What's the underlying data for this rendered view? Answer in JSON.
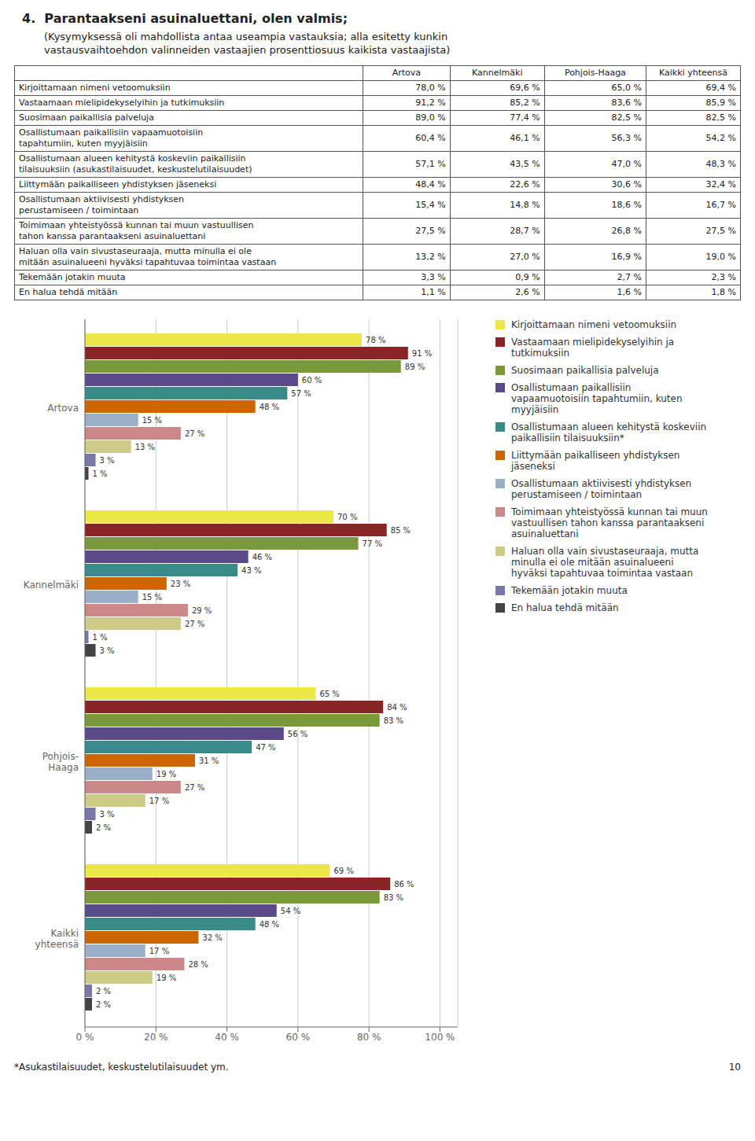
{
  "chart_data": {
    "type": "bar",
    "orientation": "horizontal",
    "title": "4.  Parantaakseni asuinaluettani, olen valmis;",
    "subtitle": "(Kysymyksessä oli mahdollista antaa useampia vastauksia; alla esitetty kunkin\nvastausvaihtoehdon valinneiden vastaajien prosenttiosuus kaikista vastaajista)",
    "table": {
      "columns": [
        "Artova",
        "Kannelmäki",
        "Pohjois-Haaga",
        "Kaikki yhteensä"
      ],
      "rows": [
        [
          "Kirjoittamaan nimeni vetoomuksiin",
          "78,0 %",
          "69,6 %",
          "65,0 %",
          "69,4 %"
        ],
        [
          "Vastaamaan mielipidekyselyihin ja tutkimuksiin",
          "91,2 %",
          "85,2 %",
          "83,6 %",
          "85,9 %"
        ],
        [
          "Suosimaan paikallisia palveluja",
          "89,0 %",
          "77,4 %",
          "82,5 %",
          "82,5 %"
        ],
        [
          "Osallistumaan paikallisiin vapaamuotoisiin\ntapahtumiin, kuten myyjäisiin",
          "60,4 %",
          "46,1 %",
          "56,3 %",
          "54,2 %"
        ],
        [
          "Osallistumaan alueen kehitystä koskeviin paikallisiin\ntilaisuuksiin (asukastilaisuudet, keskustelutilaisuudet)",
          "57,1 %",
          "43,5 %",
          "47,0 %",
          "48,3 %"
        ],
        [
          "Liittymään paikalliseen yhdistyksen jäseneksi",
          "48,4 %",
          "22,6 %",
          "30,6 %",
          "32,4 %"
        ],
        [
          "Osallistumaan aktiivisesti yhdistyksen\nperustamiseen / toimintaan",
          "15,4 %",
          "14,8 %",
          "18,6 %",
          "16,7 %"
        ],
        [
          "Toimimaan yhteistyössä kunnan tai muun vastuullisen\ntahon kanssa parantaakseni asuinaluettani",
          "27,5 %",
          "28,7 %",
          "26,8 %",
          "27,5 %"
        ],
        [
          "Haluan olla vain sivustaseuraaja, mutta minulla ei ole\nmitään asuinalueeni hyväksi tapahtuvaa toimintaa vastaan",
          "13,2 %",
          "27,0 %",
          "16,9 %",
          "19,0 %"
        ],
        [
          "Tekemään jotakin muuta",
          "3,3 %",
          "0,9 %",
          "2,7 %",
          "2,3 %"
        ],
        [
          "En halua tehdä mitään",
          "1,1 %",
          "2,6 %",
          "1,6 %",
          "1,8 %"
        ]
      ]
    },
    "categories": [
      "Artova",
      "Kannelmäki",
      "Pohjois-\nHaaga",
      "Kaikki\nyhteensä"
    ],
    "series": [
      {
        "name": "Kirjoittamaan nimeni vetoomuksiin",
        "color": "#EDE84A",
        "values": [
          78,
          70,
          65,
          69
        ],
        "value_labels": [
          "78 %",
          "70 %",
          "65 %",
          "69 %"
        ]
      },
      {
        "name": "Vastaamaan mielipidekyselyihin ja\ntutkimuksiin",
        "color": "#8B2525",
        "values": [
          91,
          85,
          84,
          86
        ],
        "value_labels": [
          "91 %",
          "85 %",
          "84 %",
          "86 %"
        ]
      },
      {
        "name": "Suosimaan paikallisia palveluja",
        "color": "#7A9A3A",
        "values": [
          89,
          77,
          83,
          83
        ],
        "value_labels": [
          "89 %",
          "77 %",
          "83 %",
          "83 %"
        ]
      },
      {
        "name": "Osallistumaan paikallisiin\nvapaamuotoisiin tapahtumiin, kuten\nmyyjäisiin",
        "color": "#5A4A8A",
        "values": [
          60,
          46,
          56,
          54
        ],
        "value_labels": [
          "60 %",
          "46 %",
          "56 %",
          "54 %"
        ]
      },
      {
        "name": "Osallistumaan alueen kehitystä koskeviin\npaikallisiin tilaisuuksiin*",
        "color": "#3A8A8A",
        "values": [
          57,
          43,
          47,
          48
        ],
        "value_labels": [
          "57 %",
          "43 %",
          "47 %",
          "48 %"
        ]
      },
      {
        "name": "Liittymään paikalliseen yhdistyksen\njäseneksi",
        "color": "#CC6600",
        "values": [
          48,
          23,
          31,
          32
        ],
        "value_labels": [
          "48 %",
          "23 %",
          "31 %",
          "32 %"
        ]
      },
      {
        "name": "Osallistumaan aktiivisesti yhdistyksen\nperustamiseen / toimintaan",
        "color": "#9AAFC8",
        "values": [
          15,
          15,
          19,
          17
        ],
        "value_labels": [
          "15 %",
          "15 %",
          "19 %",
          "17 %"
        ]
      },
      {
        "name": "Toimimaan yhteistyössä kunnan tai muun\nvastuullisen tahon kanssa parantaakseni\nasuinaluettani",
        "color": "#CC8888",
        "values": [
          27,
          29,
          27,
          28
        ],
        "value_labels": [
          "27 %",
          "29 %",
          "27 %",
          "28 %"
        ]
      },
      {
        "name": "Haluan olla vain sivustaseuraaja, mutta\nminulla ei ole mitään asuinalueeni\nhyväksi tapahtuvaa toimintaa vastaan",
        "color": "#CCCC88",
        "values": [
          13,
          27,
          17,
          19
        ],
        "value_labels": [
          "13 %",
          "27 %",
          "17 %",
          "19 %"
        ]
      },
      {
        "name": "Tekemään jotakin muuta",
        "color": "#7878AA",
        "values": [
          3,
          1,
          3,
          2
        ],
        "value_labels": [
          "3 %",
          "1 %",
          "3 %",
          "2 %"
        ]
      },
      {
        "name": "En halua tehdä mitään",
        "color": "#444444",
        "values": [
          1,
          3,
          2,
          2
        ],
        "value_labels": [
          "1 %",
          "3 %",
          "2 %",
          "2 %"
        ]
      }
    ],
    "xlim": [
      0,
      105
    ],
    "xticks": [
      {
        "value": 0,
        "label": "0 %"
      },
      {
        "value": 20,
        "label": "20 %"
      },
      {
        "value": 40,
        "label": "40 %"
      },
      {
        "value": 60,
        "label": "60 %"
      },
      {
        "value": 80,
        "label": "80 %"
      },
      {
        "value": 100,
        "label": "100 %"
      }
    ],
    "grid": true,
    "legend": "upper right",
    "data_labels": true,
    "annotations": [
      "*Asukastilaisuudet, keskustelutilaisuudet ym.",
      "10"
    ]
  }
}
